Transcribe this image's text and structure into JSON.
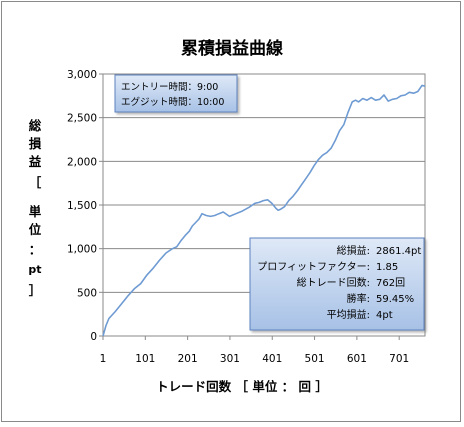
{
  "chart_data": {
    "type": "line",
    "title": "累積損益曲線",
    "xlabel": "トレード回数 ［ 単位 ： 回 ］",
    "ylabel": [
      "総",
      "損",
      "益",
      "［",
      "単",
      "位",
      "：",
      "pt",
      "］"
    ],
    "x_ticks": [
      "1",
      "101",
      "201",
      "301",
      "401",
      "501",
      "601",
      "701"
    ],
    "y_ticks": [
      "0",
      "500",
      "1,000",
      "1,500",
      "2,000",
      "2,500",
      "3,000"
    ],
    "xlim": [
      1,
      762
    ],
    "ylim": [
      0,
      3000
    ],
    "grid": true,
    "series_color": "#6f9bd3",
    "series": [
      {
        "x": [
          1,
          8,
          15,
          30,
          45,
          60,
          75,
          90,
          105,
          120,
          135,
          150,
          165,
          175,
          185,
          195,
          205,
          212,
          220,
          228,
          235,
          245,
          255,
          265,
          275,
          285,
          300,
          315,
          330,
          345,
          360,
          370,
          380,
          390,
          400,
          410,
          415,
          420,
          430,
          440,
          450,
          460,
          470,
          480,
          490,
          500,
          510,
          520,
          530,
          540,
          550,
          560,
          570,
          580,
          590,
          598,
          605,
          615,
          625,
          635,
          645,
          655,
          665,
          675,
          685,
          695,
          705,
          715,
          725,
          735,
          745,
          755,
          762
        ],
        "y": [
          0,
          120,
          200,
          280,
          370,
          460,
          540,
          600,
          700,
          780,
          870,
          950,
          1000,
          1020,
          1090,
          1150,
          1200,
          1260,
          1300,
          1340,
          1400,
          1380,
          1370,
          1380,
          1400,
          1420,
          1370,
          1400,
          1430,
          1470,
          1520,
          1530,
          1550,
          1560,
          1520,
          1460,
          1440,
          1450,
          1480,
          1550,
          1600,
          1660,
          1730,
          1800,
          1870,
          1950,
          2020,
          2070,
          2100,
          2150,
          2240,
          2350,
          2420,
          2560,
          2680,
          2700,
          2680,
          2720,
          2700,
          2730,
          2700,
          2710,
          2760,
          2690,
          2710,
          2720,
          2750,
          2760,
          2790,
          2780,
          2800,
          2870,
          2860
        ]
      }
    ]
  },
  "info_box_top": {
    "lines": [
      "エントリー時間：9:00",
      "エグジット時間：10:00"
    ]
  },
  "stats_box": {
    "rows": [
      {
        "label": "総損益:",
        "value": "2861.4pt"
      },
      {
        "label": "プロフィットファクター:",
        "value": "1.85"
      },
      {
        "label": "総トレード回数:",
        "value": "762回"
      },
      {
        "label": "勝率:",
        "value": "59.45%"
      },
      {
        "label": "平均損益:",
        "value": "4pt"
      }
    ]
  }
}
